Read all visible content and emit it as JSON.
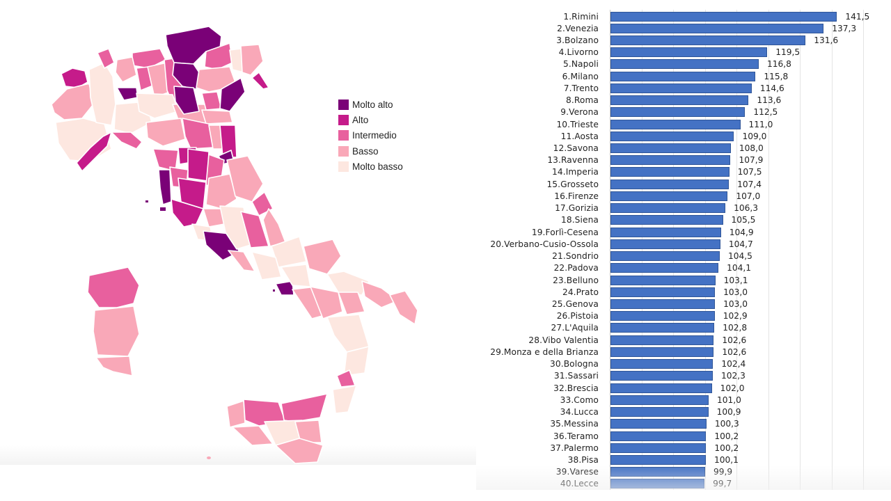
{
  "map": {
    "legend": [
      {
        "label": "Molto alto",
        "color": "#7A0177"
      },
      {
        "label": "Alto",
        "color": "#C51B8A"
      },
      {
        "label": "Intermedio",
        "color": "#E8609E"
      },
      {
        "label": "Basso",
        "color": "#F9A8B8"
      },
      {
        "label": "Molto basso",
        "color": "#FDE7E0"
      }
    ],
    "border_color": "#ffffff"
  },
  "chart": {
    "bar_color": "#4472C4",
    "bar_border": "#2F5597",
    "gridline_color": "#e4e4e4"
  },
  "chart_data": {
    "type": "bar",
    "orientation": "horizontal",
    "title": "",
    "xlabel": "",
    "ylabel": "",
    "xlim": [
      70,
      150
    ],
    "grid": true,
    "gridlines": [
      70,
      80,
      90,
      100,
      110,
      120,
      130,
      140,
      150
    ],
    "categories": [
      "1.Rimini",
      "2.Venezia",
      "3.Bolzano",
      "4.Livorno",
      "5.Napoli",
      "6.Milano",
      "7.Trento",
      "8.Roma",
      "9.Verona",
      "10.Trieste",
      "11.Aosta",
      "12.Savona",
      "13.Ravenna",
      "14.Imperia",
      "15.Grosseto",
      "16.Firenze",
      "17.Gorizia",
      "18.Siena",
      "19.Forlì-Cesena",
      "20.Verbano-Cusio-Ossola",
      "21.Sondrio",
      "22.Padova",
      "23.Belluno",
      "24.Prato",
      "25.Genova",
      "26.Pistoia",
      "27.L'Aquila",
      "28.Vibo Valentia",
      "29.Monza e della Brianza",
      "30.Bologna",
      "31.Sassari",
      "32.Brescia",
      "33.Como",
      "34.Lucca",
      "35.Messina",
      "36.Teramo",
      "37.Palermo",
      "38.Pisa",
      "39.Varese",
      "40.Lecce"
    ],
    "values": [
      141.5,
      137.3,
      131.6,
      119.5,
      116.8,
      115.8,
      114.6,
      113.6,
      112.5,
      111.0,
      109.0,
      108.0,
      107.9,
      107.5,
      107.4,
      107.0,
      106.3,
      105.5,
      104.9,
      104.7,
      104.5,
      104.1,
      103.1,
      103.0,
      103.0,
      102.9,
      102.8,
      102.6,
      102.6,
      102.4,
      102.3,
      102.0,
      101.0,
      100.9,
      100.3,
      100.2,
      100.2,
      100.1,
      99.9,
      99.7
    ],
    "value_labels": [
      "141,5",
      "137,3",
      "131,6",
      "119,5",
      "116,8",
      "115,8",
      "114,6",
      "113,6",
      "112,5",
      "111,0",
      "109,0",
      "108,0",
      "107,9",
      "107,5",
      "107,4",
      "107,0",
      "106,3",
      "105,5",
      "104,9",
      "104,7",
      "104,5",
      "104,1",
      "103,1",
      "103,0",
      "103,0",
      "102,9",
      "102,8",
      "102,6",
      "102,6",
      "102,4",
      "102,3",
      "102,0",
      "101,0",
      "100,9",
      "100,3",
      "100,2",
      "100,2",
      "100,1",
      "99,9",
      "99,7"
    ],
    "legend": [
      "Molto alto",
      "Alto",
      "Intermedio",
      "Basso",
      "Molto basso"
    ]
  }
}
